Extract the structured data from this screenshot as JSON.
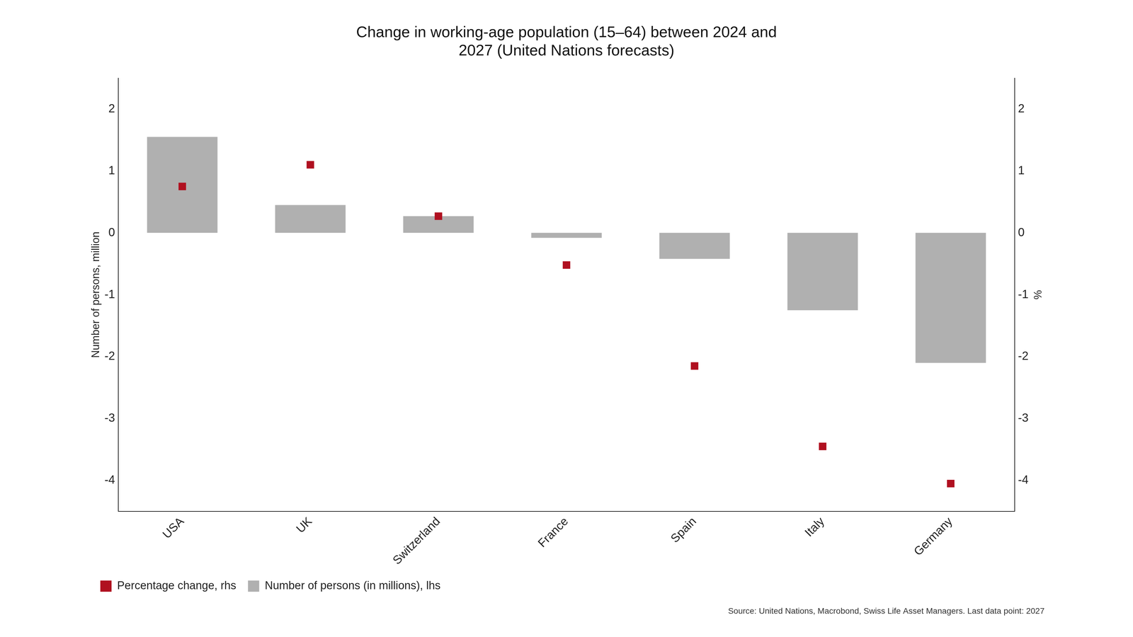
{
  "chart_data": {
    "type": "bar",
    "title": [
      "Change in working-age population (15–64) between 2024 and",
      "2027 (United Nations forecasts)"
    ],
    "ylabel": "Number of persons, million",
    "y2label": "%",
    "categories": [
      "USA",
      "UK",
      "Switzerland",
      "France",
      "Spain",
      "Italy",
      "Germany"
    ],
    "series": [
      {
        "name": "Number of persons (in millions), lhs",
        "type": "bar",
        "color": "#b0b0b0",
        "values": [
          1.55,
          0.45,
          0.27,
          -0.08,
          -0.42,
          -1.25,
          -2.1
        ]
      },
      {
        "name": "Percentage change, rhs",
        "type": "scatter",
        "color": "#b01020",
        "marker": "square",
        "axis": "y2",
        "values": [
          0.75,
          1.1,
          0.27,
          -0.52,
          -2.15,
          -3.45,
          -4.05
        ]
      }
    ],
    "ylim": [
      -4.5,
      2.5
    ],
    "yticks": [
      -4,
      -3,
      -2,
      -1,
      0,
      1,
      2
    ],
    "y2lim": [
      -4.5,
      2.5
    ],
    "y2ticks": [
      -4,
      -3,
      -2,
      -1,
      0,
      1,
      2
    ],
    "annotations": [
      "Source: United Nations, Macrobond, Swiss Life Asset Managers. Last data point: 2027"
    ],
    "legend": "bottom",
    "grid": false
  }
}
